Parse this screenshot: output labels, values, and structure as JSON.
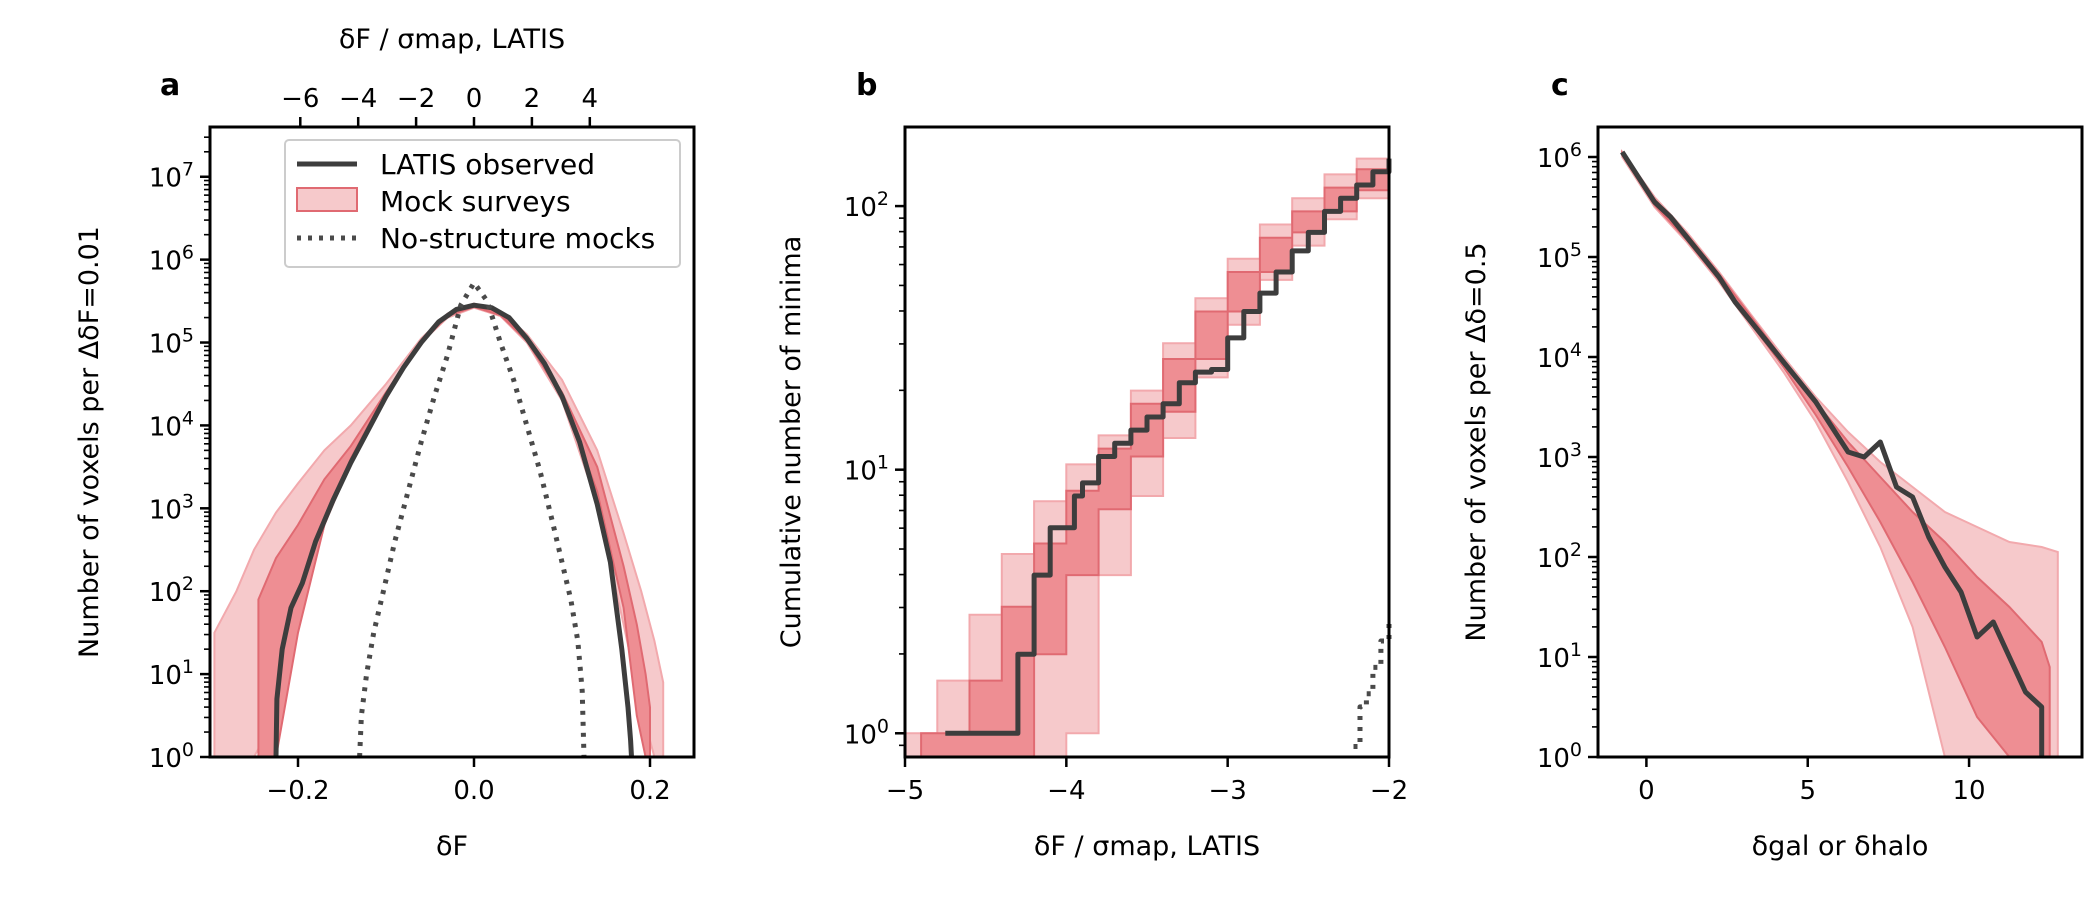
{
  "figure_panels": [
    "a",
    "b",
    "c"
  ],
  "chart_data": [
    {
      "panel": "a",
      "type": "line",
      "xlabel": "δF",
      "top_xlabel": "δF / σmap, LATIS",
      "ylabel": "Number of voxels per ΔδF=0.01",
      "xlim": [
        -0.3,
        0.25
      ],
      "ylim_log10": [
        0,
        7.6
      ],
      "yscale": "log",
      "xticks": [
        -0.2,
        0.0,
        0.2
      ],
      "xtick_labels": [
        "−0.2",
        "0.0",
        "0.2"
      ],
      "top_xticks": [
        -6,
        -4,
        -2,
        0,
        2,
        4
      ],
      "top_xtick_labels": [
        "−6",
        "−4",
        "−2",
        "0",
        "2",
        "4"
      ],
      "top_axis_scale": 0.0329,
      "yticks_log10": [
        0,
        1,
        2,
        3,
        4,
        5,
        6,
        7
      ],
      "ytick_labels": [
        "10^0",
        "10^1",
        "10^2",
        "10^3",
        "10^4",
        "10^5",
        "10^6",
        "10^7"
      ],
      "legend": {
        "placement": "upper-right",
        "entries": [
          {
            "label": "LATIS observed",
            "style": "solid"
          },
          {
            "label": "Mock surveys",
            "style": "band"
          },
          {
            "label": "No-structure mocks",
            "style": "dotted"
          }
        ]
      },
      "series": [
        {
          "name": "LATIS observed",
          "style": "solid",
          "x": [
            -0.225,
            -0.224,
            -0.218,
            -0.208,
            -0.195,
            -0.18,
            -0.16,
            -0.14,
            -0.12,
            -0.1,
            -0.08,
            -0.06,
            -0.04,
            -0.02,
            0.0,
            0.02,
            0.04,
            0.06,
            0.08,
            0.1,
            0.12,
            0.14,
            0.155,
            0.168,
            0.175,
            0.178,
            0.179
          ],
          "log10y": [
            0.0,
            0.7,
            1.3,
            1.8,
            2.1,
            2.6,
            3.1,
            3.55,
            3.95,
            4.35,
            4.7,
            5.0,
            5.25,
            5.4,
            5.45,
            5.42,
            5.3,
            5.05,
            4.75,
            4.35,
            3.8,
            3.05,
            2.35,
            1.3,
            0.6,
            0.2,
            0.0
          ]
        },
        {
          "name": "No-structure mocks",
          "style": "dotted",
          "x": [
            -0.13,
            -0.128,
            -0.122,
            -0.114,
            -0.103,
            -0.09,
            -0.075,
            -0.06,
            -0.045,
            -0.03,
            -0.015,
            0.0,
            0.015,
            0.03,
            0.045,
            0.06,
            0.075,
            0.09,
            0.1,
            0.11,
            0.118,
            0.123,
            0.125
          ],
          "log10y": [
            0.0,
            0.5,
            1.0,
            1.5,
            2.0,
            2.6,
            3.2,
            3.8,
            4.35,
            4.85,
            5.45,
            5.72,
            5.5,
            5.0,
            4.55,
            4.0,
            3.45,
            2.8,
            2.35,
            1.9,
            1.4,
            0.8,
            0.0
          ]
        },
        {
          "name": "Mock surveys (outer band)",
          "style": "band-light",
          "x": [
            -0.295,
            -0.27,
            -0.25,
            -0.225,
            -0.2,
            -0.17,
            -0.14,
            -0.1,
            -0.06,
            -0.03,
            0.0,
            0.03,
            0.06,
            0.1,
            0.14,
            0.17,
            0.19,
            0.205,
            0.215
          ],
          "log10_low": [
            0.0,
            0.0,
            0.0,
            0.5,
            1.6,
            2.8,
            3.55,
            4.35,
            5.0,
            5.3,
            5.42,
            5.32,
            5.0,
            4.3,
            3.05,
            1.6,
            0.6,
            0.0,
            0.0
          ],
          "log10_high": [
            1.5,
            2.0,
            2.5,
            2.95,
            3.3,
            3.7,
            4.0,
            4.5,
            5.05,
            5.35,
            5.47,
            5.38,
            5.1,
            4.55,
            3.7,
            2.7,
            2.0,
            1.4,
            0.9
          ]
        },
        {
          "name": "Mock surveys (inner band)",
          "style": "band-dark",
          "x": [
            -0.245,
            -0.225,
            -0.2,
            -0.17,
            -0.14,
            -0.1,
            -0.06,
            -0.03,
            0.0,
            0.03,
            0.06,
            0.1,
            0.14,
            0.17,
            0.185,
            0.195,
            0.2
          ],
          "log10_low": [
            0.0,
            0.0,
            1.5,
            2.8,
            3.6,
            4.4,
            5.0,
            5.32,
            5.43,
            5.33,
            5.02,
            4.35,
            3.2,
            1.8,
            0.5,
            0.0,
            0.0
          ],
          "log10_high": [
            1.9,
            2.4,
            2.8,
            3.35,
            3.75,
            4.4,
            5.02,
            5.33,
            5.45,
            5.36,
            5.05,
            4.4,
            3.5,
            2.3,
            1.6,
            1.0,
            0.6
          ]
        }
      ]
    },
    {
      "panel": "b",
      "type": "step",
      "xlabel": "δF / σmap, LATIS",
      "ylabel": "Cumulative number of minima",
      "xlim": [
        -5,
        -2
      ],
      "ylim_log10": [
        -0.09,
        2.3
      ],
      "yscale": "log",
      "xticks": [
        -5,
        -4,
        -3,
        -2
      ],
      "xtick_labels": [
        "−5",
        "−4",
        "−3",
        "−2"
      ],
      "yticks_log10": [
        0,
        1,
        2
      ],
      "ytick_labels": [
        "10^0",
        "10^1",
        "10^2"
      ],
      "series": [
        {
          "name": "LATIS observed",
          "style": "solid-step",
          "x": [
            -4.75,
            -4.3,
            -4.2,
            -4.1,
            -3.95,
            -3.9,
            -3.85,
            -3.8,
            -3.7,
            -3.6,
            -3.5,
            -3.4,
            -3.3,
            -3.2,
            -3.1,
            -3.0,
            -2.9,
            -2.8,
            -2.7,
            -2.6,
            -2.5,
            -2.4,
            -2.3,
            -2.2,
            -2.1,
            -2.0
          ],
          "log10y": [
            0.0,
            0.3,
            0.6,
            0.78,
            0.9,
            0.95,
            0.95,
            1.05,
            1.1,
            1.15,
            1.2,
            1.25,
            1.33,
            1.37,
            1.38,
            1.5,
            1.6,
            1.67,
            1.75,
            1.83,
            1.9,
            1.98,
            2.03,
            2.08,
            2.13,
            2.18
          ]
        },
        {
          "name": "No-structure mocks",
          "style": "dotted-step",
          "x": [
            -2.22,
            -2.18,
            -2.14,
            -2.1,
            -2.05,
            -2.0
          ],
          "log10y": [
            -0.05,
            0.1,
            0.15,
            0.25,
            0.35,
            0.43
          ]
        },
        {
          "name": "Mock surveys (outer band)",
          "style": "band-light",
          "x": [
            -5.0,
            -4.8,
            -4.6,
            -4.4,
            -4.2,
            -4.0,
            -3.8,
            -3.6,
            -3.4,
            -3.2,
            -3.0,
            -2.8,
            -2.6,
            -2.4,
            -2.2,
            -2.0
          ],
          "log10_low": [
            -0.09,
            -0.09,
            -0.09,
            -0.09,
            -0.09,
            0.0,
            0.6,
            0.9,
            1.12,
            1.35,
            1.55,
            1.72,
            1.85,
            1.95,
            2.03,
            2.1
          ],
          "log10_high": [
            0.0,
            0.2,
            0.45,
            0.68,
            0.88,
            1.02,
            1.13,
            1.3,
            1.48,
            1.65,
            1.8,
            1.93,
            2.03,
            2.12,
            2.18,
            2.22
          ]
        },
        {
          "name": "Mock surveys (inner band)",
          "style": "band-dark",
          "x": [
            -4.9,
            -4.8,
            -4.6,
            -4.4,
            -4.2,
            -4.0,
            -3.8,
            -3.6,
            -3.4,
            -3.2,
            -3.0,
            -2.8,
            -2.6,
            -2.4,
            -2.2,
            -2.0
          ],
          "log10_low": [
            -0.09,
            -0.09,
            -0.09,
            -0.09,
            0.3,
            0.6,
            0.85,
            1.05,
            1.22,
            1.42,
            1.6,
            1.75,
            1.9,
            1.98,
            2.06,
            2.13
          ],
          "log10_high": [
            0.0,
            0.0,
            0.2,
            0.48,
            0.72,
            0.92,
            1.08,
            1.25,
            1.42,
            1.6,
            1.75,
            1.88,
            1.98,
            2.07,
            2.14,
            2.2
          ]
        }
      ]
    },
    {
      "panel": "c",
      "type": "line",
      "xlabel": "δgal or δhalo",
      "ylabel": "Number of voxels per Δδ=0.5",
      "xlim": [
        -1.5,
        13.5
      ],
      "ylim_log10": [
        0,
        6.3
      ],
      "yscale": "log",
      "xticks": [
        0,
        5,
        10
      ],
      "xtick_labels": [
        "0",
        "5",
        "10"
      ],
      "yticks_log10": [
        0,
        1,
        2,
        3,
        4,
        5,
        6
      ],
      "ytick_labels": [
        "10^0",
        "10^1",
        "10^2",
        "10^3",
        "10^4",
        "10^5",
        "10^6"
      ],
      "series": [
        {
          "name": "LATIS observed",
          "style": "solid",
          "x": [
            -0.75,
            -0.25,
            0.25,
            0.75,
            1.25,
            1.75,
            2.25,
            2.75,
            3.25,
            3.75,
            4.25,
            4.75,
            5.25,
            5.75,
            6.25,
            6.75,
            7.25,
            7.75,
            8.25,
            8.75,
            9.25,
            9.75,
            10.25,
            10.75,
            11.25,
            11.75,
            12.25,
            12.25
          ],
          "log10y": [
            6.05,
            5.8,
            5.55,
            5.4,
            5.2,
            5.0,
            4.8,
            4.55,
            4.35,
            4.15,
            3.95,
            3.75,
            3.55,
            3.3,
            3.05,
            3.0,
            3.15,
            2.7,
            2.6,
            2.2,
            1.9,
            1.65,
            1.2,
            1.35,
            1.0,
            0.65,
            0.5,
            0.0
          ]
        },
        {
          "name": "Mock surveys (outer band)",
          "style": "band-light",
          "x": [
            -0.75,
            0.25,
            1.25,
            2.25,
            3.25,
            4.25,
            5.25,
            6.25,
            7.25,
            8.25,
            9.25,
            10.25,
            11.25,
            12.25,
            12.75
          ],
          "log10_low": [
            6.0,
            5.5,
            5.15,
            4.75,
            4.3,
            3.85,
            3.35,
            2.75,
            2.1,
            1.3,
            0.0,
            0.0,
            0.0,
            0.0,
            0.0
          ],
          "log10_high": [
            6.05,
            5.6,
            5.25,
            4.85,
            4.42,
            4.0,
            3.6,
            3.25,
            2.95,
            2.7,
            2.45,
            2.3,
            2.15,
            2.1,
            2.05
          ]
        },
        {
          "name": "Mock surveys (inner band)",
          "style": "band-dark",
          "x": [
            -0.75,
            0.25,
            1.25,
            2.25,
            3.25,
            4.25,
            5.25,
            6.25,
            7.25,
            8.25,
            9.25,
            10.25,
            11.25,
            12.25,
            12.5
          ],
          "log10_low": [
            6.02,
            5.52,
            5.17,
            4.77,
            4.33,
            3.9,
            3.42,
            2.9,
            2.35,
            1.75,
            1.1,
            0.4,
            0.0,
            0.0,
            0.0
          ],
          "log10_high": [
            6.04,
            5.58,
            5.23,
            4.83,
            4.4,
            3.97,
            3.55,
            3.15,
            2.8,
            2.45,
            2.15,
            1.8,
            1.5,
            1.15,
            0.9
          ]
        }
      ]
    }
  ],
  "colors": {
    "observed": "#3d3d3d",
    "band_light": "#f6c9cb",
    "band_light_edge": "#f2a9ad",
    "band_dark": "#ee8e93",
    "band_dark_edge": "#e06a72",
    "dotted": "#4a4a4a"
  }
}
